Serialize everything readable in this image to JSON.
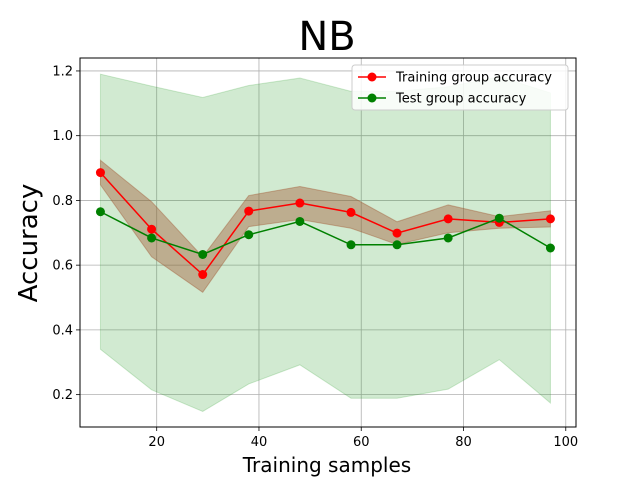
{
  "chart_data": {
    "type": "line",
    "title": "NB",
    "xlabel": "Training samples",
    "ylabel": "Accuracy",
    "xlim": [
      5,
      102
    ],
    "ylim": [
      0.1,
      1.24
    ],
    "grid": true,
    "legend_position": "top-right",
    "x": [
      9,
      19,
      29,
      38,
      48,
      58,
      67,
      77,
      87,
      97
    ],
    "xticks": [
      20,
      40,
      60,
      80,
      100
    ],
    "yticks": [
      0.2,
      0.4,
      0.6,
      0.8,
      1.0,
      1.2
    ],
    "series": [
      {
        "name": "Training group accuracy",
        "color": "#ff0000",
        "band_color": "#a0522d",
        "values": [
          0.886,
          0.711,
          0.571,
          0.767,
          0.792,
          0.763,
          0.699,
          0.743,
          0.732,
          0.743
        ],
        "band_low": [
          0.848,
          0.626,
          0.516,
          0.719,
          0.741,
          0.714,
          0.664,
          0.7,
          0.714,
          0.718
        ],
        "band_high": [
          0.924,
          0.796,
          0.626,
          0.815,
          0.843,
          0.812,
          0.734,
          0.786,
          0.75,
          0.768
        ]
      },
      {
        "name": "Test group accuracy",
        "color": "#008000",
        "band_color": "#2ca02c",
        "values": [
          0.765,
          0.684,
          0.633,
          0.694,
          0.735,
          0.663,
          0.663,
          0.684,
          0.745,
          0.653
        ],
        "band_low": [
          0.34,
          0.215,
          0.148,
          0.233,
          0.292,
          0.189,
          0.189,
          0.217,
          0.308,
          0.174
        ],
        "band_high": [
          1.19,
          1.153,
          1.118,
          1.155,
          1.178,
          1.137,
          1.137,
          1.151,
          1.182,
          1.132
        ]
      }
    ]
  }
}
